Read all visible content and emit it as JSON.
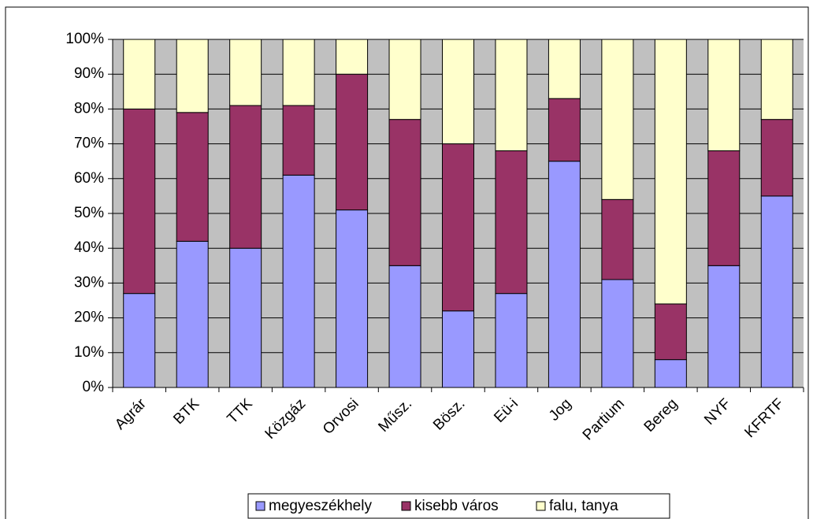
{
  "chart_data": {
    "type": "stacked_bar",
    "categories": [
      "Agrár",
      "BTK",
      "TTK",
      "Közgáz",
      "Orvosi",
      "Műsz.",
      "Bösz.",
      "Eü-i",
      "Jog",
      "Partium",
      "Bereg",
      "NYF",
      "KFRTF"
    ],
    "series": [
      {
        "name": "megyeszékhely",
        "color": "#9999ff",
        "values": [
          27,
          42,
          40,
          61,
          51,
          35,
          22,
          27,
          65,
          31,
          8,
          35,
          55
        ]
      },
      {
        "name": "kisebb város",
        "color": "#993366",
        "values": [
          53,
          37,
          41,
          20,
          39,
          42,
          48,
          41,
          18,
          23,
          16,
          33,
          22
        ]
      },
      {
        "name": "falu, tanya",
        "color": "#ffffcc",
        "values": [
          20,
          21,
          19,
          19,
          10,
          23,
          30,
          32,
          17,
          46,
          76,
          32,
          23
        ]
      }
    ],
    "ylim": [
      0,
      100
    ],
    "yticks": [
      {
        "value": 0,
        "label": "0%"
      },
      {
        "value": 10,
        "label": "10%"
      },
      {
        "value": 20,
        "label": "20%"
      },
      {
        "value": 30,
        "label": "30%"
      },
      {
        "value": 40,
        "label": "40%"
      },
      {
        "value": 50,
        "label": "50%"
      },
      {
        "value": 60,
        "label": "60%"
      },
      {
        "value": 70,
        "label": "70%"
      },
      {
        "value": 80,
        "label": "80%"
      },
      {
        "value": 90,
        "label": "90%"
      },
      {
        "value": 100,
        "label": "100%"
      }
    ],
    "grid": true,
    "legend": "bottom",
    "background": "#c0c0c0"
  }
}
